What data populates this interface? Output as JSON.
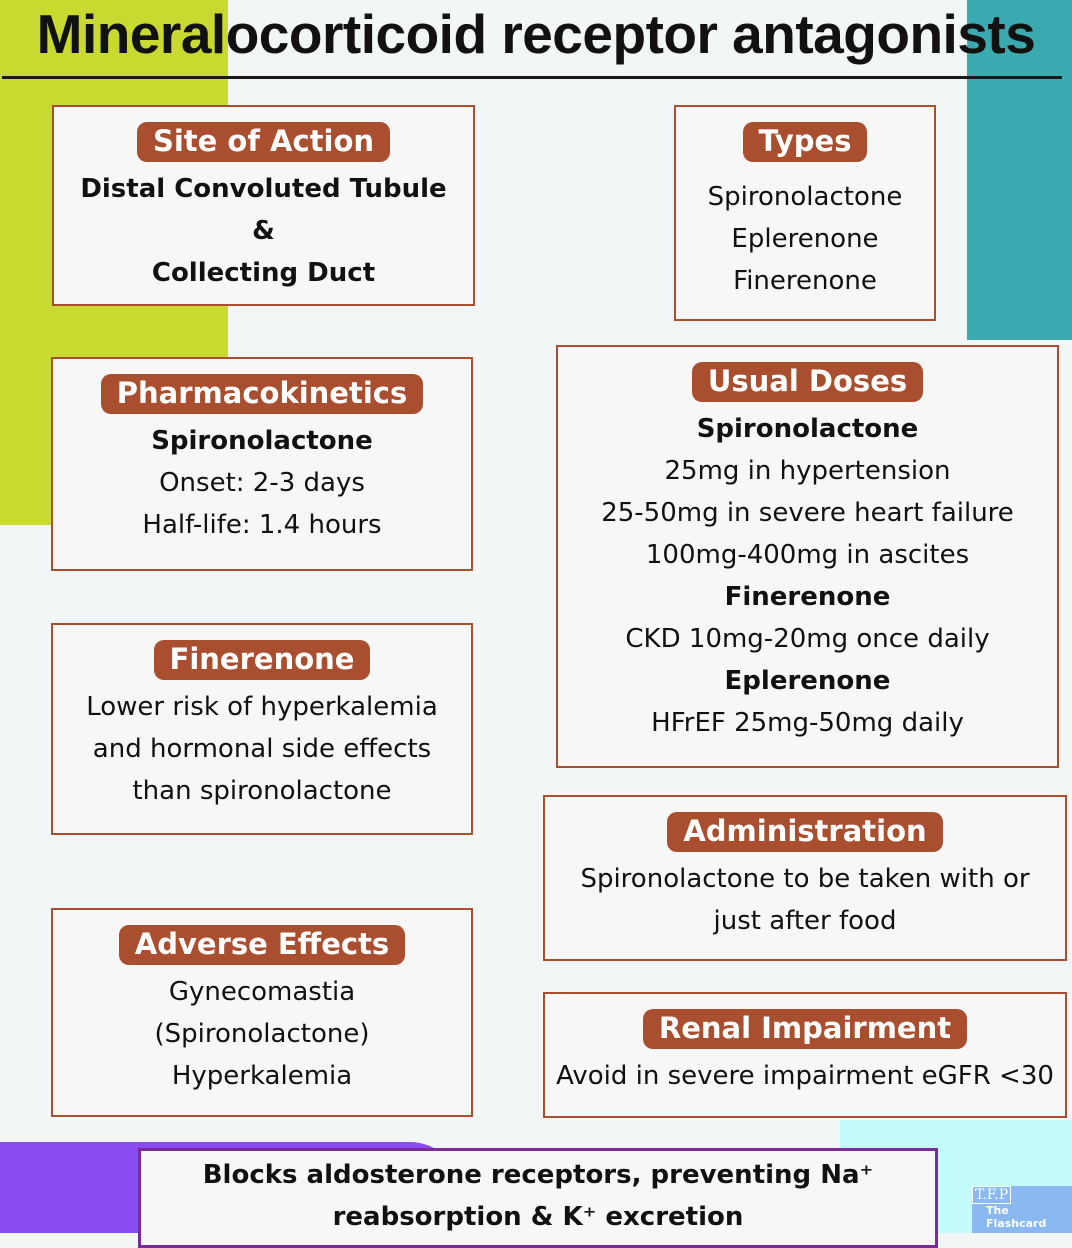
{
  "title": "Mineralocorticoid receptor antagonists",
  "colors": {
    "accent_brown": "#a94f30",
    "green": "#c8d92f",
    "teal": "#3aa9b0",
    "purple": "#8a4cf0"
  },
  "site_of_action": {
    "heading": "Site of Action",
    "lines": [
      "Distal Convoluted Tubule",
      "&",
      "Collecting Duct"
    ]
  },
  "types": {
    "heading": "Types",
    "lines": [
      "Spironolactone",
      "Eplerenone",
      "Finerenone"
    ]
  },
  "pharmacokinetics": {
    "heading": "Pharmacokinetics",
    "lines": [
      "Spironolactone",
      "Onset: 2-3 days",
      "Half-life: 1.4 hours"
    ]
  },
  "usual_doses": {
    "heading": "Usual Doses",
    "lines": [
      "Spironolactone",
      "25mg in hypertension",
      "25-50mg in severe heart failure",
      "100mg-400mg in ascites",
      "Finerenone",
      "CKD 10mg-20mg once daily",
      "Eplerenone",
      "HFrEF 25mg-50mg daily"
    ]
  },
  "finerenone": {
    "heading": "Finerenone",
    "lines": [
      "Lower risk of hyperkalemia",
      "and hormonal side effects",
      "than spironolactone"
    ]
  },
  "administration": {
    "heading": "Administration",
    "lines": [
      "Spironolactone to be taken with or",
      "just after food"
    ]
  },
  "adverse_effects": {
    "heading": "Adverse Effects",
    "lines": [
      "Gynecomastia",
      "(Spironolactone)",
      "Hyperkalemia"
    ]
  },
  "renal_impairment": {
    "heading": "Renal Impairment",
    "lines": [
      "Avoid in severe impairment eGFR <30"
    ]
  },
  "mechanism": {
    "lines": [
      "Blocks aldosterone receptors, preventing Na⁺",
      "reabsorption & K⁺ excretion"
    ]
  },
  "logo": {
    "abbr": "T.F.P",
    "text": "The Flashcard"
  }
}
